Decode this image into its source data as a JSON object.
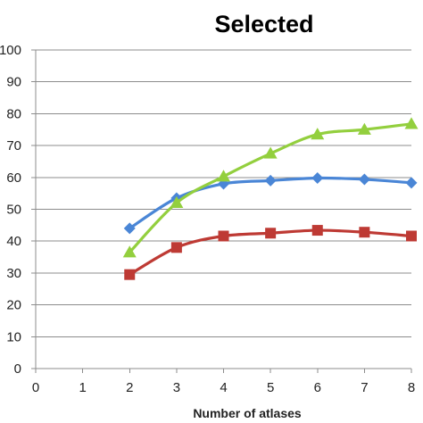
{
  "chart_data": {
    "type": "line",
    "title": "Selected",
    "xlabel": "Number of atlases",
    "ylabel": "",
    "xlim": [
      0,
      8
    ],
    "ylim": [
      0,
      100
    ],
    "x_ticks": [
      0,
      1,
      2,
      3,
      4,
      5,
      6,
      7,
      8
    ],
    "y_ticks": [
      0,
      10,
      20,
      30,
      40,
      50,
      60,
      70,
      80,
      90,
      100
    ],
    "grid": "horizontal",
    "legend": "none",
    "series": [
      {
        "color": "#4a86d6",
        "marker": "diamond",
        "x": [
          2,
          3,
          4,
          5,
          6,
          7,
          8
        ],
        "y": [
          44,
          53.5,
          58,
          59,
          59.8,
          59.4,
          58.3
        ]
      },
      {
        "color": "#be3a34",
        "marker": "square",
        "x": [
          2,
          3,
          4,
          5,
          6,
          7,
          8
        ],
        "y": [
          29.5,
          38,
          41.6,
          42.5,
          43.4,
          42.8,
          41.6
        ]
      },
      {
        "color": "#93cf3e",
        "marker": "triangle",
        "x": [
          2,
          3,
          4,
          5,
          6,
          7,
          8
        ],
        "y": [
          36.5,
          52,
          60.3,
          67.5,
          73.5,
          75,
          76.8
        ]
      }
    ]
  }
}
